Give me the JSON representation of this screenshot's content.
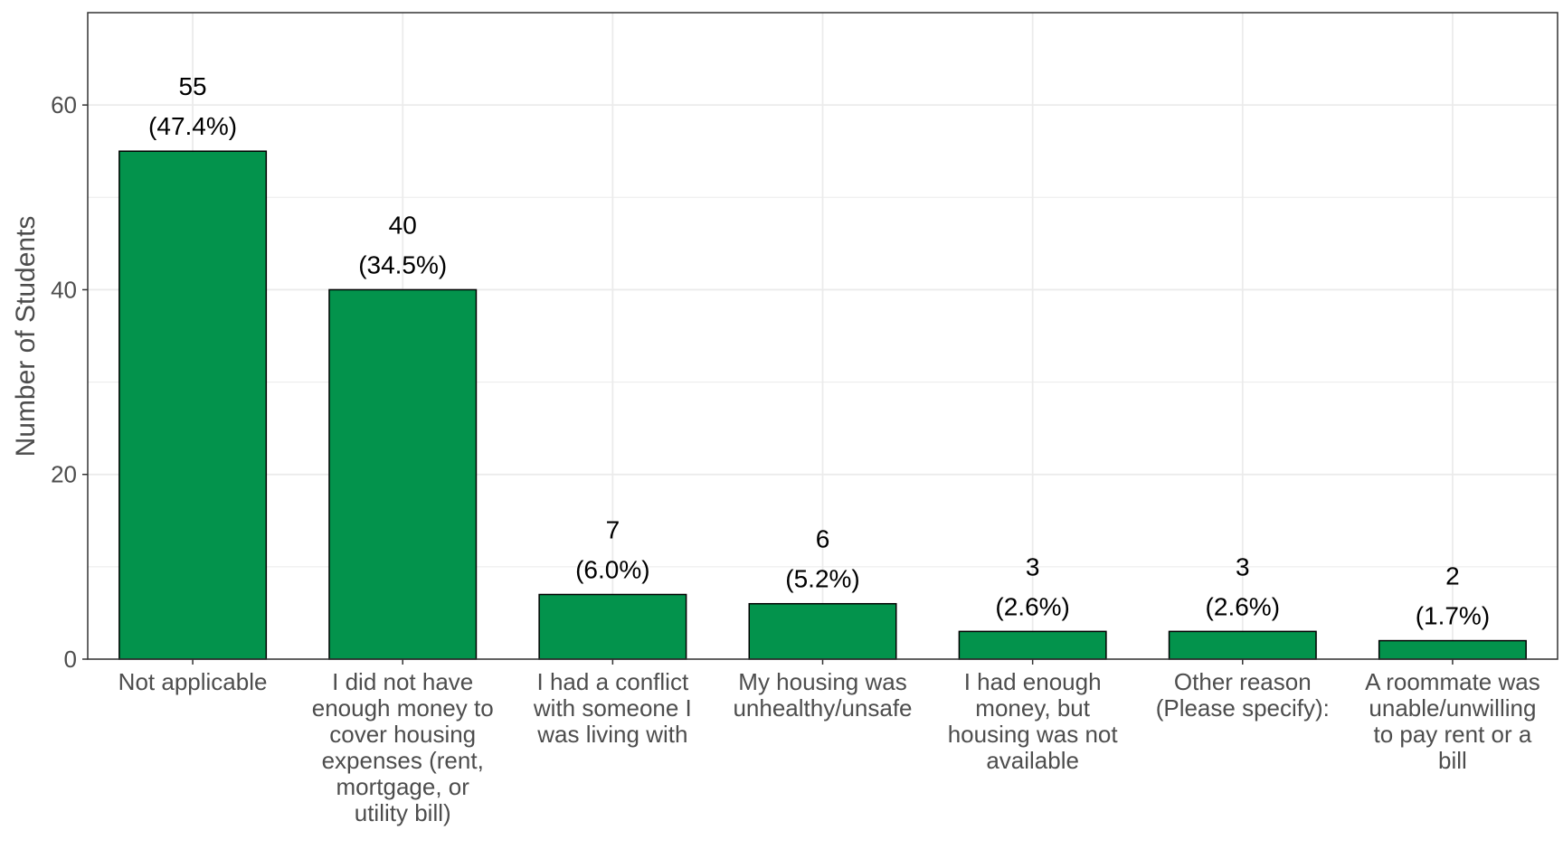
{
  "chart_data": {
    "type": "bar",
    "title": "",
    "xlabel": "",
    "ylabel": "Number of Students",
    "ylim": [
      0,
      70
    ],
    "yticks": [
      0,
      20,
      40,
      60
    ],
    "grid": true,
    "legend": "none",
    "categories": [
      "Not applicable",
      "I did not have enough money to cover housing expenses (rent, mortgage, or utility bill)",
      "I had a conflict with someone I was living with",
      "My housing was unhealthy/unsafe",
      "I had enough money, but housing was not available",
      "Other reason (Please specify):",
      "A roommate was unable/unwilling to pay rent or a bill"
    ],
    "category_lines": [
      [
        "Not applicable"
      ],
      [
        "I did not have",
        "enough money to",
        "cover housing",
        "expenses (rent,",
        "mortgage, or",
        "utility bill)"
      ],
      [
        "I had a conflict",
        "with someone I",
        "was living with"
      ],
      [
        "My housing was",
        "unhealthy/unsafe"
      ],
      [
        "I had enough",
        "money, but",
        "housing was not",
        "available"
      ],
      [
        "Other reason",
        "(Please specify):"
      ],
      [
        "A roommate was",
        "unable/unwilling",
        "to pay rent or a",
        "bill"
      ]
    ],
    "values": [
      55,
      40,
      7,
      6,
      3,
      3,
      2
    ],
    "percent_labels": [
      "(47.4%)",
      "(34.5%)",
      "(6.0%)",
      "(5.2%)",
      "(2.6%)",
      "(2.6%)",
      "(1.7%)"
    ],
    "colors": {
      "bar": "#03934c",
      "bar_outline": "#000000",
      "grid": "#ebebeb",
      "panel_border": "#333333"
    }
  }
}
